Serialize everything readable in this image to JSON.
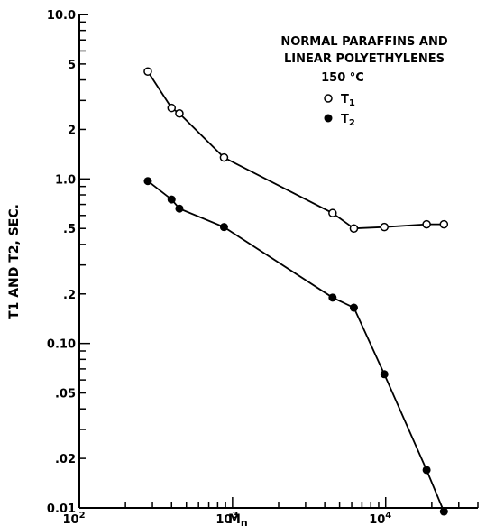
{
  "chart_data": {
    "type": "scatter",
    "xlabel": "Mn",
    "ylabel": "T1 AND T2, SEC.",
    "xscale": "log",
    "yscale": "log",
    "xlim": [
      100,
      40000
    ],
    "ylim": [
      0.01,
      10.0
    ],
    "x_tick_labels": [
      {
        "value": 100,
        "base": "10",
        "exp": "2"
      },
      {
        "value": 1000,
        "base": "10",
        "exp": "3"
      },
      {
        "value": 10000,
        "base": "10",
        "exp": "4"
      }
    ],
    "y_tick_labels": [
      {
        "value": 10.0,
        "label": "10.0"
      },
      {
        "value": 5,
        "label": "5"
      },
      {
        "value": 2,
        "label": "2"
      },
      {
        "value": 1.0,
        "label": "1.0"
      },
      {
        "value": 0.5,
        "label": ".5"
      },
      {
        "value": 0.2,
        "label": ".2"
      },
      {
        "value": 0.1,
        "label": "0.10"
      },
      {
        "value": 0.05,
        "label": ".05"
      },
      {
        "value": 0.02,
        "label": ".02"
      },
      {
        "value": 0.01,
        "label": "0.01"
      }
    ],
    "legend": {
      "title_line1": "NORMAL PARAFFINS AND",
      "title_line2": "LINEAR POLYETHYLENES",
      "title_line3": "150 °C",
      "position": "top-right"
    },
    "series": [
      {
        "name": "T1",
        "marker": "open-circle",
        "color": "#000000",
        "points": [
          {
            "x": 280,
            "y": 4.5
          },
          {
            "x": 400,
            "y": 2.7
          },
          {
            "x": 450,
            "y": 2.5
          },
          {
            "x": 880,
            "y": 1.35
          },
          {
            "x": 4500,
            "y": 0.62
          },
          {
            "x": 6200,
            "y": 0.5
          },
          {
            "x": 9800,
            "y": 0.51
          },
          {
            "x": 18500,
            "y": 0.53
          },
          {
            "x": 24000,
            "y": 0.53
          }
        ]
      },
      {
        "name": "T2",
        "marker": "filled-circle",
        "color": "#000000",
        "points": [
          {
            "x": 280,
            "y": 0.97
          },
          {
            "x": 400,
            "y": 0.75
          },
          {
            "x": 450,
            "y": 0.66
          },
          {
            "x": 880,
            "y": 0.51
          },
          {
            "x": 4500,
            "y": 0.19
          },
          {
            "x": 6200,
            "y": 0.165
          },
          {
            "x": 9800,
            "y": 0.065
          },
          {
            "x": 18500,
            "y": 0.017
          },
          {
            "x": 24000,
            "y": 0.0095
          }
        ]
      }
    ]
  }
}
